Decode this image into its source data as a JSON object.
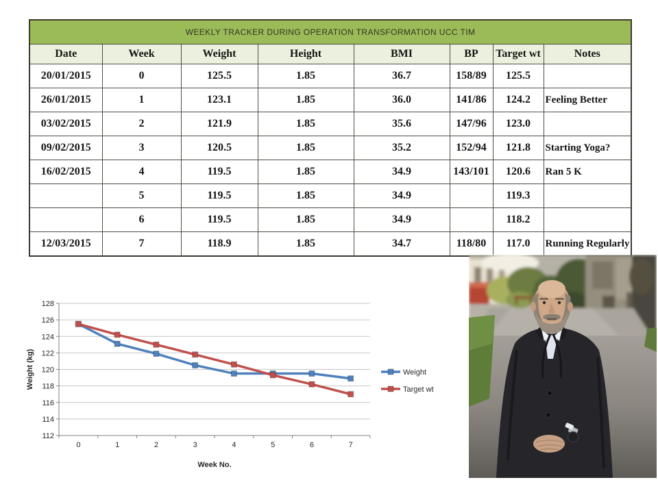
{
  "chart_data": [
    {
      "type": "table",
      "title": "WEEKLY TRACKER DURING OPERATION TRANSFORMATION UCC TIM",
      "columns": [
        "Date",
        "Week",
        "Weight",
        "Height",
        "BMI",
        "BP",
        "Target wt",
        "Notes"
      ],
      "rows": [
        [
          "20/01/2015",
          "0",
          "125.5",
          "1.85",
          "36.7",
          "158/89",
          "125.5",
          ""
        ],
        [
          "26/01/2015",
          "1",
          "123.1",
          "1.85",
          "36.0",
          "141/86",
          "124.2",
          "Feeling Better"
        ],
        [
          "03/02/2015",
          "2",
          "121.9",
          "1.85",
          "35.6",
          "147/96",
          "123.0",
          ""
        ],
        [
          "09/02/2015",
          "3",
          "120.5",
          "1.85",
          "35.2",
          "152/94",
          "121.8",
          "Starting Yoga?"
        ],
        [
          "16/02/2015",
          "4",
          "119.5",
          "1.85",
          "34.9",
          "143/101",
          "120.6",
          "Ran 5 K"
        ],
        [
          "",
          "5",
          "119.5",
          "1.85",
          "34.9",
          "",
          "119.3",
          ""
        ],
        [
          "",
          "6",
          "119.5",
          "1.85",
          "34.9",
          "",
          "118.2",
          ""
        ],
        [
          "12/03/2015",
          "7",
          "118.9",
          "1.85",
          "34.7",
          "118/80",
          "117.0",
          "Running Regularly"
        ]
      ],
      "header_bg": "#9bbb59",
      "subheader_bg": "#ebf1de"
    },
    {
      "type": "line",
      "x": [
        0,
        1,
        2,
        3,
        4,
        5,
        6,
        7
      ],
      "series": [
        {
          "name": "Weight",
          "color": "#4f81bd",
          "values": [
            125.5,
            123.1,
            121.9,
            120.5,
            119.5,
            119.5,
            119.5,
            118.9
          ]
        },
        {
          "name": "Target wt",
          "color": "#c0504d",
          "values": [
            125.5,
            124.2,
            123.0,
            121.8,
            120.6,
            119.3,
            118.2,
            117.0
          ]
        }
      ],
      "xlabel": "Week No.",
      "ylabel": "Weight (kg)",
      "ylim": [
        112,
        128
      ],
      "ytick_step": 2,
      "grid": true,
      "legend_position": "right",
      "gridline_color": "#c6c6c6",
      "axis_color": "#808080"
    }
  ],
  "photo": {
    "palette": {
      "coat": "#26252a",
      "shirt": "#dfe4ee",
      "skin": "#cfa888",
      "beard": "#9a8e80",
      "grass": "#5d7d38",
      "path": "#8b8680",
      "red_container": "#b64531",
      "stone_building": "#948e7e"
    }
  }
}
